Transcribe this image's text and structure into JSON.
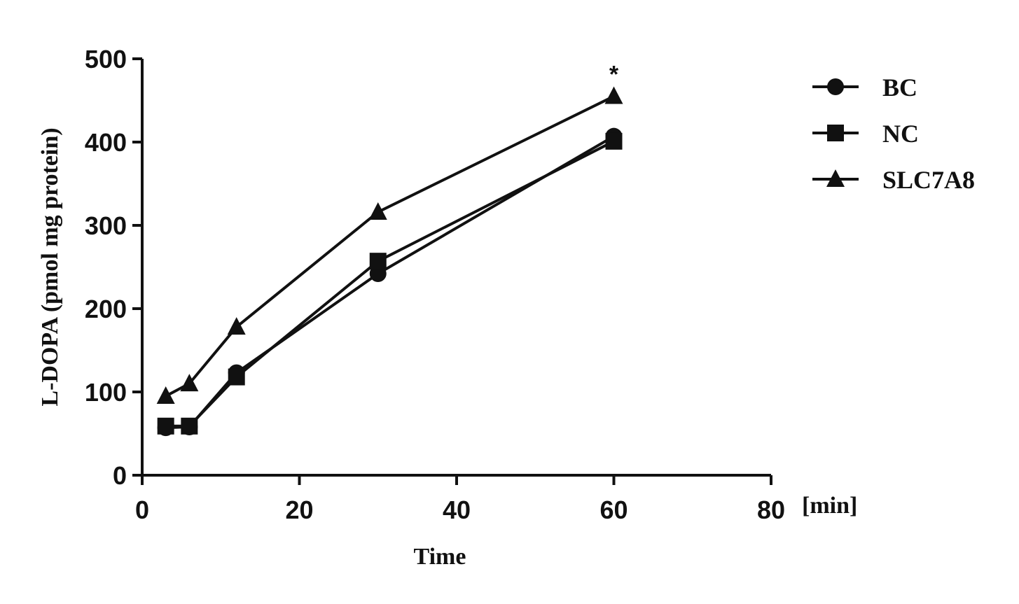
{
  "chart_data": {
    "type": "line",
    "xlabel": "Time",
    "x_unit": "[min]",
    "ylabel": "L-DOPA (pmol mg protein)",
    "xlim": [
      0,
      80
    ],
    "ylim": [
      0,
      500
    ],
    "xticks": [
      0,
      20,
      40,
      60,
      80
    ],
    "yticks": [
      0,
      100,
      200,
      300,
      400,
      500
    ],
    "grid": false,
    "legend_position": "top-right",
    "x": [
      3,
      6,
      12,
      30,
      60
    ],
    "series": [
      {
        "name": "BC",
        "marker": "circle",
        "values": [
          57,
          58,
          123,
          242,
          407
        ]
      },
      {
        "name": "NC",
        "marker": "square",
        "values": [
          59,
          59,
          118,
          257,
          401
        ]
      },
      {
        "name": "SLC7A8",
        "marker": "triangle",
        "values": [
          95,
          110,
          178,
          316,
          455
        ]
      }
    ],
    "annotations": [
      {
        "text": "*",
        "x": 60,
        "y": 455
      }
    ]
  }
}
